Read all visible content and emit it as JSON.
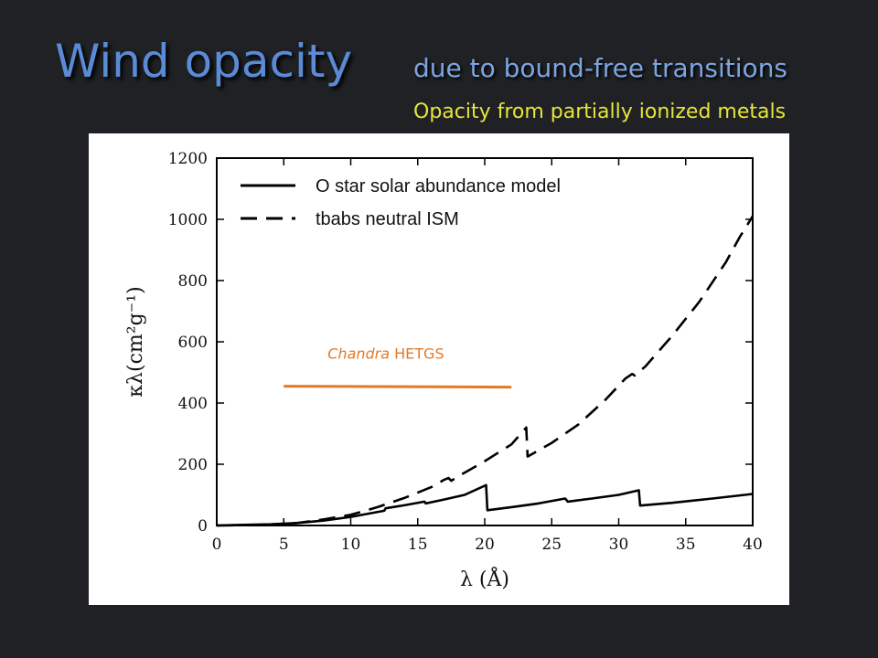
{
  "slide": {
    "title": "Wind opacity",
    "subtitle": "due to bound-free transitions",
    "subtitle2": "Opacity from partially ionized metals"
  },
  "chart_data": {
    "type": "line",
    "xlabel": "λ (Å)",
    "ylabel": "κλ(cm²g⁻¹)",
    "xlim": [
      0,
      40
    ],
    "ylim": [
      0,
      1200
    ],
    "xticks": [
      0,
      5,
      10,
      15,
      20,
      25,
      30,
      35,
      40
    ],
    "yticks": [
      0,
      200,
      400,
      600,
      800,
      1000,
      1200
    ],
    "xtick_labels": [
      "0",
      "5",
      "10",
      "15",
      "20",
      "25",
      "30",
      "35",
      "40"
    ],
    "ytick_labels": [
      "0",
      "200",
      "400",
      "600",
      "800",
      "1000",
      "1200"
    ],
    "grid": false,
    "legend_position": "top-left",
    "series": [
      {
        "name": "O star solar abundance model",
        "style": "solid",
        "color": "#000000",
        "points": [
          [
            0,
            0
          ],
          [
            2,
            2
          ],
          [
            4,
            4
          ],
          [
            6,
            8
          ],
          [
            8,
            16
          ],
          [
            10,
            28
          ],
          [
            12.5,
            48
          ],
          [
            12.6,
            56
          ],
          [
            14,
            66
          ],
          [
            15.5,
            78
          ],
          [
            15.6,
            72
          ],
          [
            17,
            85
          ],
          [
            18.5,
            100
          ],
          [
            20.1,
            132
          ],
          [
            20.2,
            50
          ],
          [
            22,
            60
          ],
          [
            24,
            72
          ],
          [
            26,
            88
          ],
          [
            26.2,
            78
          ],
          [
            28,
            88
          ],
          [
            30,
            100
          ],
          [
            31.5,
            115
          ],
          [
            31.6,
            65
          ],
          [
            34,
            74
          ],
          [
            37,
            88
          ],
          [
            40,
            103
          ]
        ]
      },
      {
        "name": "tbabs neutral ISM",
        "style": "dashed",
        "color": "#000000",
        "points": [
          [
            0,
            0
          ],
          [
            2,
            1
          ],
          [
            4,
            3
          ],
          [
            6,
            8
          ],
          [
            8,
            20
          ],
          [
            10,
            35
          ],
          [
            12,
            60
          ],
          [
            14,
            90
          ],
          [
            16,
            125
          ],
          [
            17,
            150
          ],
          [
            17.3,
            155
          ],
          [
            17.5,
            146
          ],
          [
            18,
            160
          ],
          [
            20,
            210
          ],
          [
            22,
            265
          ],
          [
            23.1,
            320
          ],
          [
            23.2,
            225
          ],
          [
            25,
            270
          ],
          [
            27,
            330
          ],
          [
            29,
            410
          ],
          [
            30.5,
            480
          ],
          [
            31,
            495
          ],
          [
            31.2,
            490
          ],
          [
            32,
            520
          ],
          [
            34,
            620
          ],
          [
            36,
            730
          ],
          [
            38,
            860
          ],
          [
            39,
            940
          ],
          [
            40,
            1010
          ]
        ]
      }
    ],
    "annotations": [
      {
        "text": "Chandra HETGS",
        "italic_part": "Chandra",
        "rest": " HETGS",
        "x_range": [
          5,
          22
        ],
        "y": 455,
        "color": "#e07b2a"
      }
    ]
  }
}
